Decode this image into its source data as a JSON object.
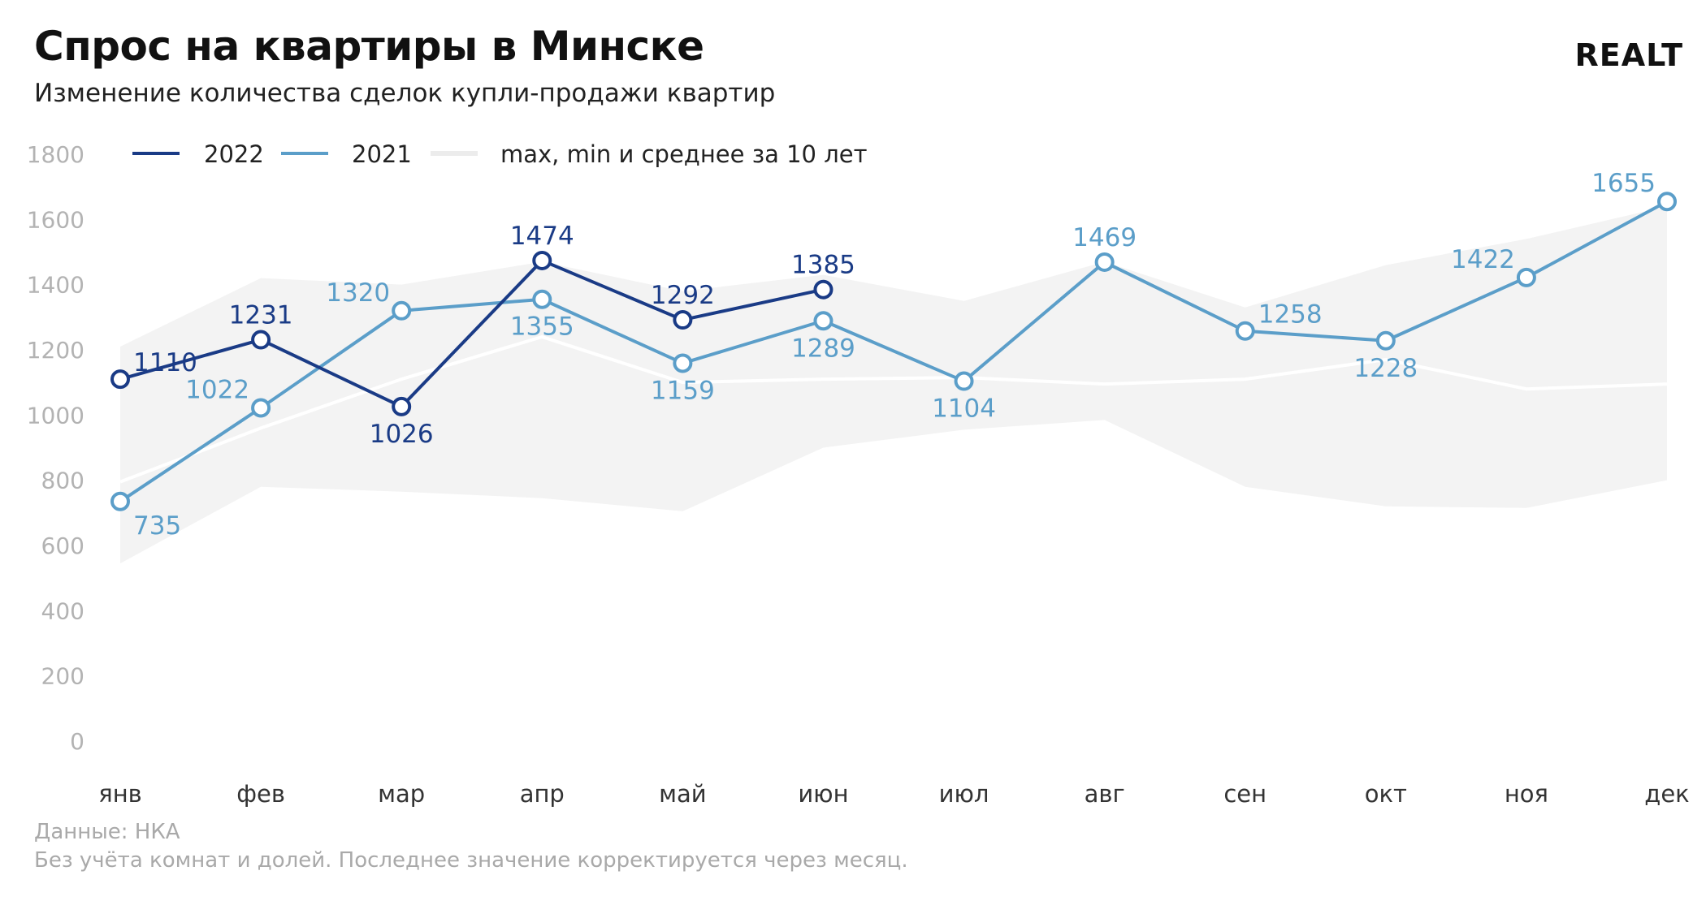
{
  "header": {
    "title": "Спрос на квартиры в Минске",
    "subtitle": "Изменение количества сделок купли-продажи квартир",
    "logo": "REALT"
  },
  "footer": {
    "source": "Данные: НКА",
    "note": "Без учёта комнат и долей. Последнее значение корректируется через месяц."
  },
  "colors": {
    "series_2022": "#1a3b86",
    "series_2021": "#5b9ec9",
    "band": "#f3f3f3",
    "mean": "#ffffff"
  },
  "chart_data": {
    "type": "line",
    "title": "Спрос на квартиры в Минске",
    "xlabel": "",
    "ylabel": "",
    "categories": [
      "янв",
      "фев",
      "мар",
      "апр",
      "май",
      "июн",
      "июл",
      "авг",
      "сен",
      "окт",
      "ноя",
      "дек"
    ],
    "ylim": [
      0,
      1800
    ],
    "yticks": [
      0,
      200,
      400,
      600,
      800,
      1000,
      1200,
      1400,
      1600,
      1800
    ],
    "grid": false,
    "legend_position": "top-left",
    "series": [
      {
        "name": "2022",
        "values": [
          1110,
          1231,
          1026,
          1474,
          1292,
          1385,
          null,
          null,
          null,
          null,
          null,
          null
        ]
      },
      {
        "name": "2021",
        "values": [
          735,
          1022,
          1320,
          1355,
          1159,
          1289,
          1104,
          1469,
          1258,
          1228,
          1422,
          1655
        ]
      }
    ],
    "band": {
      "name": "max, min и среднее за 10 лет",
      "max": [
        1210,
        1420,
        1400,
        1470,
        1380,
        1430,
        1350,
        1470,
        1330,
        1460,
        1540,
        1640
      ],
      "min": [
        545,
        780,
        765,
        745,
        705,
        900,
        955,
        985,
        780,
        720,
        715,
        800
      ],
      "mean": [
        795,
        960,
        1110,
        1240,
        1100,
        1110,
        1115,
        1095,
        1110,
        1170,
        1080,
        1095
      ]
    }
  }
}
